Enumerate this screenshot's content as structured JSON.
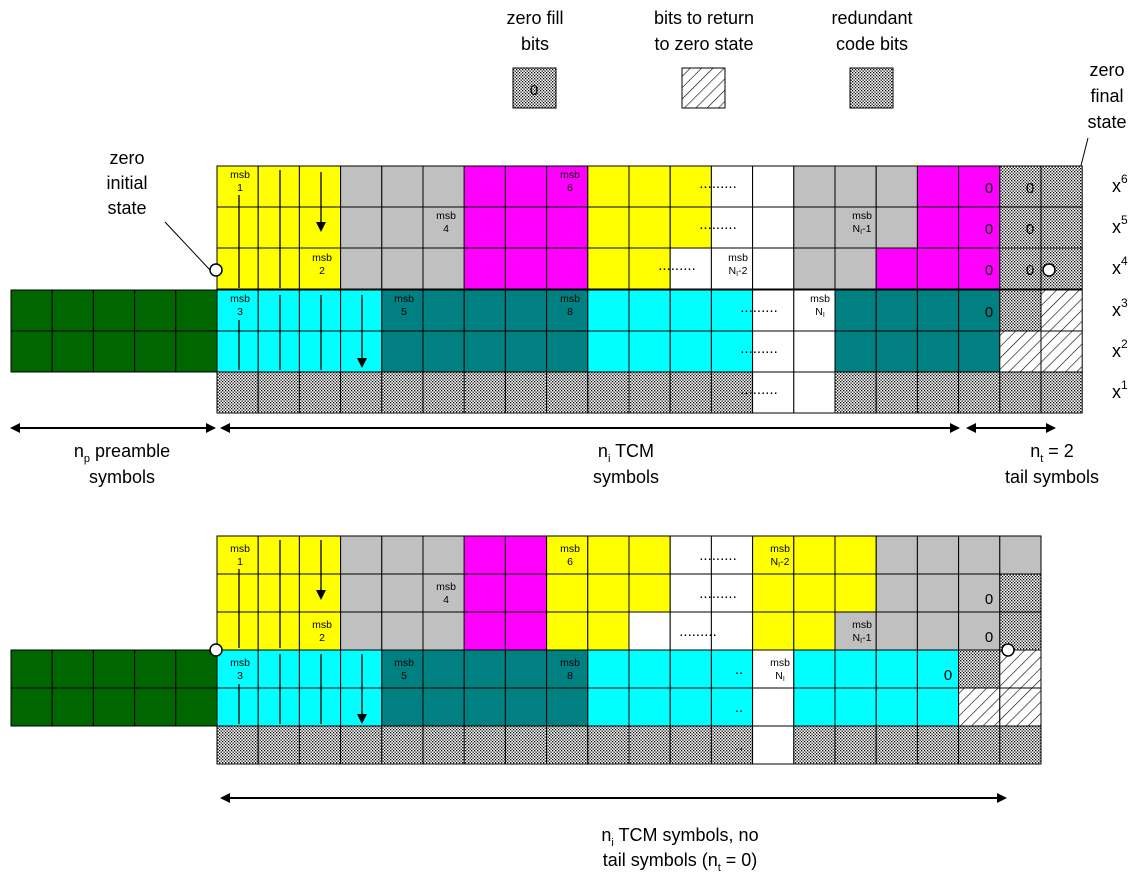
{
  "legend": {
    "zero_fill": {
      "line1": "zero fill",
      "line2": "bits",
      "symbol": "0"
    },
    "return_bits": {
      "line1": "bits to return",
      "line2": "to zero state"
    },
    "redundant": {
      "line1": "redundant",
      "line2": "code bits"
    }
  },
  "annotations": {
    "initial": {
      "line1": "zero",
      "line2": "initial",
      "line3": "state"
    },
    "final": {
      "line1": "zero",
      "line2": "final",
      "line3": "state"
    }
  },
  "bit_labels": {
    "base": "x",
    "exponents": [
      "6",
      "5",
      "4",
      "3",
      "2",
      "1"
    ]
  },
  "top": {
    "preamble": {
      "n": "n",
      "sub": "p",
      "line1_rest": " preamble",
      "line2": "symbols"
    },
    "tcm": {
      "n": "n",
      "sub": "i",
      "line1_rest": " TCM",
      "line2": "symbols"
    },
    "tail": {
      "n": "n",
      "sub": "t",
      "line1_rest": " = 2",
      "line2": "tail symbols"
    }
  },
  "bottom": {
    "tcm": {
      "n": "n",
      "sub": "i",
      "line1_rest": " TCM symbols, no",
      "line2_a": "tail symbols (n",
      "line2_sub": "t",
      "line2_b": " = 0)"
    }
  },
  "msb": {
    "word": "msb",
    "n1": "1",
    "n2": "2",
    "n3": "3",
    "n4": "4",
    "n5": "5",
    "n6": "6",
    "n8": "8",
    "N": "N",
    "Nsub": "I",
    "minus1": "-1",
    "minus2": "-2"
  },
  "symbols": {
    "dots_long": ".........",
    "dots_short": "..",
    "zero": "0"
  },
  "colors": {
    "preamble": "#006600",
    "yellow": "#ffff00",
    "gray": "#c0c0c0",
    "magenta": "#ff00ff",
    "cyan": "#00ffff",
    "teal": "#008080",
    "redundant_fill": "#d4d4d4"
  }
}
